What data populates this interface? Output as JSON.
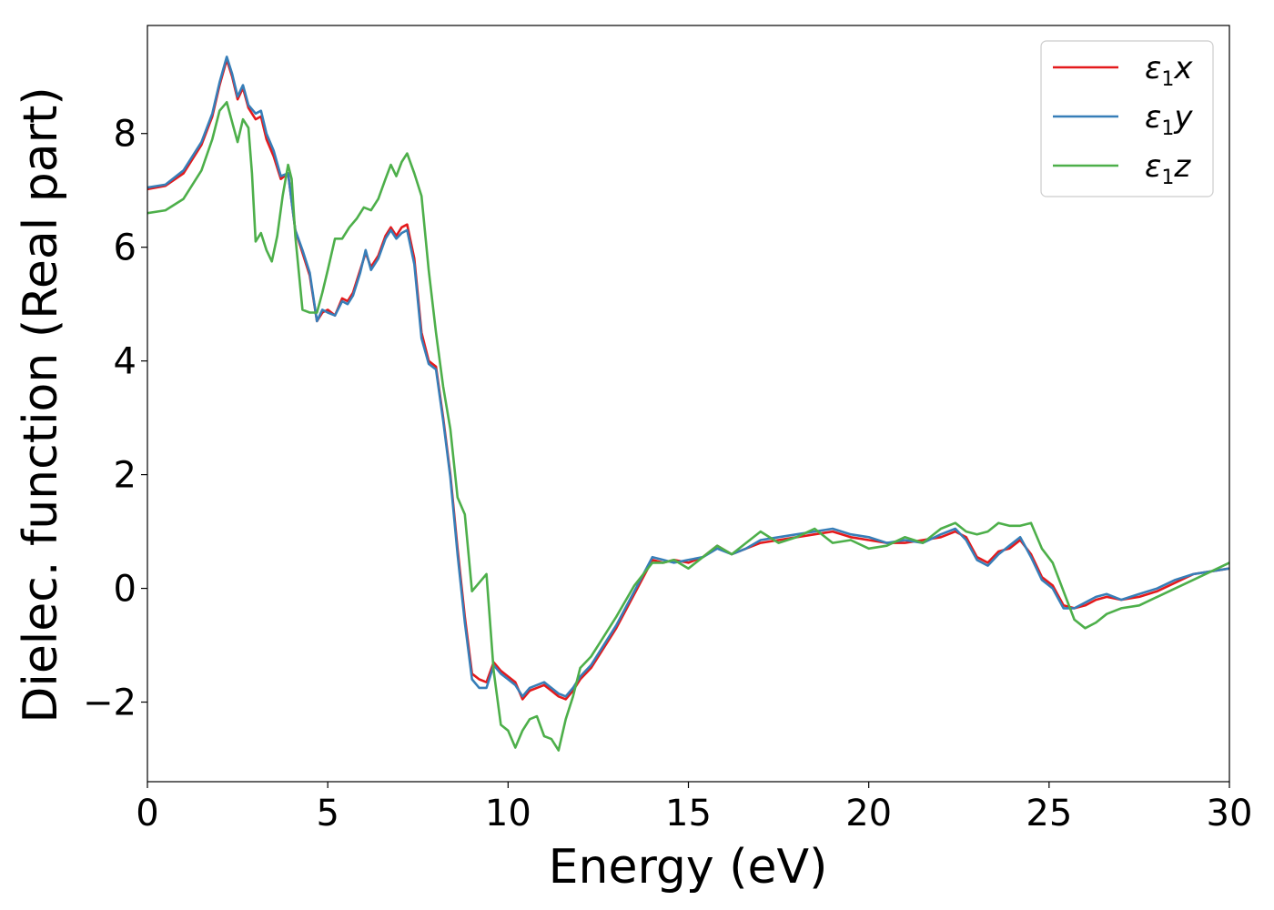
{
  "chart_data": {
    "type": "line",
    "xlabel": "Energy (eV)",
    "ylabel": "Dielec. function (Real part)",
    "xlim": [
      0,
      30
    ],
    "ylim": [
      -3.4,
      9.9
    ],
    "xticks": [
      0,
      5,
      10,
      15,
      20,
      25,
      30
    ],
    "yticks": [
      -2,
      0,
      2,
      4,
      6,
      8
    ],
    "xtick_labels": [
      "0",
      "5",
      "10",
      "15",
      "20",
      "25",
      "30"
    ],
    "ytick_labels": [
      "−2",
      "0",
      "2",
      "4",
      "6",
      "8"
    ],
    "grid": false,
    "legend_position": "top-right",
    "series": [
      {
        "name": "ε1x",
        "legend_symbol": "ε",
        "legend_sub": "1",
        "legend_var": "x",
        "color": "#e41a1c",
        "x": [
          0,
          0.5,
          1.0,
          1.5,
          1.8,
          2.0,
          2.2,
          2.35,
          2.5,
          2.65,
          2.8,
          3.0,
          3.15,
          3.3,
          3.5,
          3.7,
          3.9,
          4.1,
          4.3,
          4.5,
          4.7,
          4.85,
          5.0,
          5.2,
          5.4,
          5.55,
          5.7,
          5.9,
          6.05,
          6.2,
          6.4,
          6.6,
          6.75,
          6.9,
          7.05,
          7.2,
          7.4,
          7.6,
          7.8,
          8.0,
          8.2,
          8.4,
          8.6,
          8.8,
          9.0,
          9.2,
          9.4,
          9.6,
          9.8,
          10.0,
          10.2,
          10.4,
          10.6,
          10.8,
          11.0,
          11.2,
          11.4,
          11.6,
          11.8,
          12.0,
          12.3,
          12.6,
          13.0,
          13.5,
          14.0,
          14.3,
          14.6,
          15.0,
          15.4,
          15.8,
          16.2,
          16.6,
          17.0,
          17.5,
          18.0,
          18.5,
          19.0,
          19.5,
          20.0,
          20.5,
          21.0,
          21.5,
          22.0,
          22.4,
          22.7,
          23.0,
          23.3,
          23.6,
          23.9,
          24.2,
          24.5,
          24.8,
          25.1,
          25.4,
          25.7,
          26.0,
          26.3,
          26.6,
          27.0,
          27.5,
          28.0,
          28.5,
          29.0,
          29.5,
          30.0
        ],
        "y": [
          7.02,
          7.08,
          7.3,
          7.8,
          8.3,
          8.85,
          9.3,
          9.0,
          8.6,
          8.8,
          8.45,
          8.25,
          8.3,
          7.9,
          7.6,
          7.2,
          7.3,
          6.3,
          5.9,
          5.5,
          4.7,
          4.85,
          4.9,
          4.8,
          5.1,
          5.05,
          5.2,
          5.6,
          5.9,
          5.65,
          5.85,
          6.2,
          6.35,
          6.2,
          6.35,
          6.4,
          5.8,
          4.5,
          4.0,
          3.9,
          3.0,
          2.0,
          0.7,
          -0.5,
          -1.5,
          -1.6,
          -1.65,
          -1.3,
          -1.45,
          -1.55,
          -1.65,
          -1.95,
          -1.8,
          -1.75,
          -1.7,
          -1.8,
          -1.9,
          -1.95,
          -1.8,
          -1.6,
          -1.4,
          -1.1,
          -0.7,
          -0.1,
          0.5,
          0.45,
          0.5,
          0.45,
          0.55,
          0.75,
          0.6,
          0.7,
          0.8,
          0.85,
          0.9,
          0.95,
          1.0,
          0.9,
          0.85,
          0.8,
          0.8,
          0.85,
          0.9,
          1.0,
          0.9,
          0.55,
          0.45,
          0.65,
          0.7,
          0.85,
          0.6,
          0.2,
          0.05,
          -0.3,
          -0.35,
          -0.3,
          -0.2,
          -0.15,
          -0.2,
          -0.15,
          -0.05,
          0.1,
          0.25,
          0.3,
          0.35
        ]
      },
      {
        "name": "ε1y",
        "legend_symbol": "ε",
        "legend_sub": "1",
        "legend_var": "y",
        "color": "#377eb8",
        "x": [
          0,
          0.5,
          1.0,
          1.5,
          1.8,
          2.0,
          2.2,
          2.35,
          2.5,
          2.65,
          2.8,
          3.0,
          3.15,
          3.3,
          3.5,
          3.7,
          3.9,
          4.1,
          4.3,
          4.5,
          4.7,
          4.85,
          5.0,
          5.2,
          5.4,
          5.55,
          5.7,
          5.9,
          6.05,
          6.2,
          6.4,
          6.6,
          6.75,
          6.9,
          7.05,
          7.2,
          7.4,
          7.6,
          7.8,
          8.0,
          8.2,
          8.4,
          8.6,
          8.8,
          9.0,
          9.2,
          9.4,
          9.6,
          9.8,
          10.0,
          10.2,
          10.4,
          10.6,
          10.8,
          11.0,
          11.2,
          11.4,
          11.6,
          11.8,
          12.0,
          12.3,
          12.6,
          13.0,
          13.5,
          14.0,
          14.3,
          14.6,
          15.0,
          15.4,
          15.8,
          16.2,
          16.6,
          17.0,
          17.5,
          18.0,
          18.5,
          19.0,
          19.5,
          20.0,
          20.5,
          21.0,
          21.5,
          22.0,
          22.4,
          22.7,
          23.0,
          23.3,
          23.6,
          23.9,
          24.2,
          24.5,
          24.8,
          25.1,
          25.4,
          25.7,
          26.0,
          26.3,
          26.6,
          27.0,
          27.5,
          28.0,
          28.5,
          29.0,
          29.5,
          30.0
        ],
        "y": [
          7.05,
          7.1,
          7.35,
          7.85,
          8.35,
          8.9,
          9.35,
          9.05,
          8.65,
          8.85,
          8.5,
          8.35,
          8.4,
          8.0,
          7.7,
          7.25,
          7.3,
          6.3,
          5.95,
          5.55,
          4.7,
          4.9,
          4.85,
          4.8,
          5.05,
          5.0,
          5.15,
          5.55,
          5.95,
          5.6,
          5.8,
          6.15,
          6.3,
          6.15,
          6.25,
          6.3,
          5.7,
          4.4,
          3.95,
          3.85,
          2.95,
          1.95,
          0.6,
          -0.6,
          -1.6,
          -1.75,
          -1.75,
          -1.35,
          -1.5,
          -1.6,
          -1.7,
          -1.9,
          -1.75,
          -1.7,
          -1.65,
          -1.75,
          -1.85,
          -1.9,
          -1.75,
          -1.55,
          -1.35,
          -1.05,
          -0.65,
          -0.05,
          0.55,
          0.5,
          0.45,
          0.5,
          0.55,
          0.7,
          0.6,
          0.7,
          0.85,
          0.9,
          0.95,
          1.0,
          1.05,
          0.95,
          0.9,
          0.8,
          0.85,
          0.8,
          0.95,
          1.05,
          0.85,
          0.5,
          0.4,
          0.6,
          0.75,
          0.9,
          0.55,
          0.15,
          0.0,
          -0.35,
          -0.35,
          -0.25,
          -0.15,
          -0.1,
          -0.2,
          -0.1,
          0.0,
          0.15,
          0.25,
          0.3,
          0.35
        ]
      },
      {
        "name": "ε1z",
        "legend_symbol": "ε",
        "legend_sub": "1",
        "legend_var": "z",
        "color": "#4daf4a",
        "x": [
          0,
          0.5,
          1.0,
          1.5,
          1.8,
          2.0,
          2.2,
          2.35,
          2.5,
          2.65,
          2.8,
          2.9,
          3.0,
          3.15,
          3.3,
          3.45,
          3.6,
          3.75,
          3.9,
          4.0,
          4.1,
          4.3,
          4.5,
          4.7,
          4.85,
          5.0,
          5.2,
          5.4,
          5.6,
          5.8,
          6.0,
          6.2,
          6.4,
          6.6,
          6.75,
          6.9,
          7.05,
          7.2,
          7.4,
          7.6,
          7.8,
          8.0,
          8.2,
          8.4,
          8.6,
          8.8,
          9.0,
          9.2,
          9.4,
          9.6,
          9.8,
          10.0,
          10.2,
          10.4,
          10.6,
          10.8,
          11.0,
          11.2,
          11.4,
          11.6,
          11.8,
          12.0,
          12.3,
          12.6,
          13.0,
          13.5,
          14.0,
          14.3,
          14.6,
          15.0,
          15.4,
          15.8,
          16.2,
          16.6,
          17.0,
          17.5,
          18.0,
          18.5,
          19.0,
          19.5,
          20.0,
          20.5,
          21.0,
          21.5,
          22.0,
          22.4,
          22.7,
          23.0,
          23.3,
          23.6,
          23.9,
          24.2,
          24.5,
          24.8,
          25.1,
          25.4,
          25.7,
          26.0,
          26.3,
          26.6,
          27.0,
          27.5,
          28.0,
          28.5,
          29.0,
          29.5,
          30.0
        ],
        "y": [
          6.6,
          6.65,
          6.85,
          7.35,
          7.9,
          8.4,
          8.55,
          8.2,
          7.85,
          8.25,
          8.1,
          7.3,
          6.1,
          6.25,
          5.95,
          5.75,
          6.2,
          6.9,
          7.45,
          7.2,
          6.2,
          4.9,
          4.85,
          4.85,
          5.2,
          5.6,
          6.15,
          6.15,
          6.35,
          6.5,
          6.7,
          6.65,
          6.85,
          7.2,
          7.45,
          7.25,
          7.5,
          7.65,
          7.3,
          6.9,
          5.6,
          4.5,
          3.55,
          2.8,
          1.6,
          1.3,
          -0.05,
          0.1,
          0.25,
          -1.45,
          -2.4,
          -2.5,
          -2.8,
          -2.5,
          -2.3,
          -2.25,
          -2.6,
          -2.65,
          -2.85,
          -2.3,
          -1.9,
          -1.4,
          -1.2,
          -0.9,
          -0.5,
          0.05,
          0.45,
          0.45,
          0.5,
          0.35,
          0.55,
          0.75,
          0.6,
          0.8,
          1.0,
          0.8,
          0.9,
          1.05,
          0.8,
          0.85,
          0.7,
          0.75,
          0.9,
          0.8,
          1.05,
          1.15,
          1.0,
          0.95,
          1.0,
          1.15,
          1.1,
          1.1,
          1.15,
          0.7,
          0.45,
          -0.05,
          -0.55,
          -0.7,
          -0.6,
          -0.45,
          -0.35,
          -0.3,
          -0.15,
          0.0,
          0.15,
          0.3,
          0.45
        ]
      }
    ]
  }
}
